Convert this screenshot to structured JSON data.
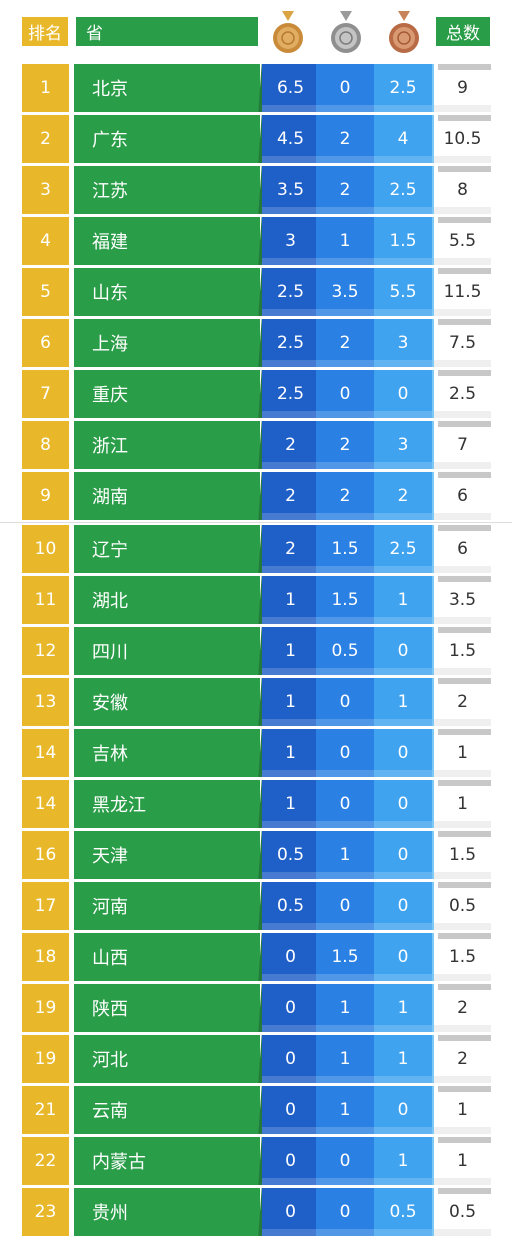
{
  "header": {
    "rank_label": "排名",
    "province_label": "省",
    "total_label": "总数",
    "medals": [
      "gold-medal-icon",
      "silver-medal-icon",
      "bronze-medal-icon"
    ]
  },
  "colors": {
    "rank": "#e8b82a",
    "province": "#2a9d48",
    "gold_col": "#1f5fc8",
    "silver_col": "#2b80e3",
    "bronze_col": "#3fa3f0"
  },
  "rows": [
    {
      "rank": "1",
      "province": "北京",
      "gold": "6.5",
      "silver": "0",
      "bronze": "2.5",
      "total": "9"
    },
    {
      "rank": "2",
      "province": "广东",
      "gold": "4.5",
      "silver": "2",
      "bronze": "4",
      "total": "10.5"
    },
    {
      "rank": "3",
      "province": "江苏",
      "gold": "3.5",
      "silver": "2",
      "bronze": "2.5",
      "total": "8"
    },
    {
      "rank": "4",
      "province": "福建",
      "gold": "3",
      "silver": "1",
      "bronze": "1.5",
      "total": "5.5"
    },
    {
      "rank": "5",
      "province": "山东",
      "gold": "2.5",
      "silver": "3.5",
      "bronze": "5.5",
      "total": "11.5"
    },
    {
      "rank": "6",
      "province": "上海",
      "gold": "2.5",
      "silver": "2",
      "bronze": "3",
      "total": "7.5"
    },
    {
      "rank": "7",
      "province": "重庆",
      "gold": "2.5",
      "silver": "0",
      "bronze": "0",
      "total": "2.5"
    },
    {
      "rank": "8",
      "province": "浙江",
      "gold": "2",
      "silver": "2",
      "bronze": "3",
      "total": "7"
    },
    {
      "rank": "9",
      "province": "湖南",
      "gold": "2",
      "silver": "2",
      "bronze": "2",
      "total": "6"
    },
    {
      "rank": "10",
      "province": "辽宁",
      "gold": "2",
      "silver": "1.5",
      "bronze": "2.5",
      "total": "6"
    },
    {
      "rank": "11",
      "province": "湖北",
      "gold": "1",
      "silver": "1.5",
      "bronze": "1",
      "total": "3.5"
    },
    {
      "rank": "12",
      "province": "四川",
      "gold": "1",
      "silver": "0.5",
      "bronze": "0",
      "total": "1.5"
    },
    {
      "rank": "13",
      "province": "安徽",
      "gold": "1",
      "silver": "0",
      "bronze": "1",
      "total": "2"
    },
    {
      "rank": "14",
      "province": "吉林",
      "gold": "1",
      "silver": "0",
      "bronze": "0",
      "total": "1"
    },
    {
      "rank": "14",
      "province": "黑龙江",
      "gold": "1",
      "silver": "0",
      "bronze": "0",
      "total": "1"
    },
    {
      "rank": "16",
      "province": "天津",
      "gold": "0.5",
      "silver": "1",
      "bronze": "0",
      "total": "1.5"
    },
    {
      "rank": "17",
      "province": "河南",
      "gold": "0.5",
      "silver": "0",
      "bronze": "0",
      "total": "0.5"
    },
    {
      "rank": "18",
      "province": "山西",
      "gold": "0",
      "silver": "1.5",
      "bronze": "0",
      "total": "1.5"
    },
    {
      "rank": "19",
      "province": "陕西",
      "gold": "0",
      "silver": "1",
      "bronze": "1",
      "total": "2"
    },
    {
      "rank": "19",
      "province": "河北",
      "gold": "0",
      "silver": "1",
      "bronze": "1",
      "total": "2"
    },
    {
      "rank": "21",
      "province": "云南",
      "gold": "0",
      "silver": "1",
      "bronze": "0",
      "total": "1"
    },
    {
      "rank": "22",
      "province": "内蒙古",
      "gold": "0",
      "silver": "0",
      "bronze": "1",
      "total": "1"
    },
    {
      "rank": "23",
      "province": "贵州",
      "gold": "0",
      "silver": "0",
      "bronze": "0.5",
      "total": "0.5"
    }
  ]
}
